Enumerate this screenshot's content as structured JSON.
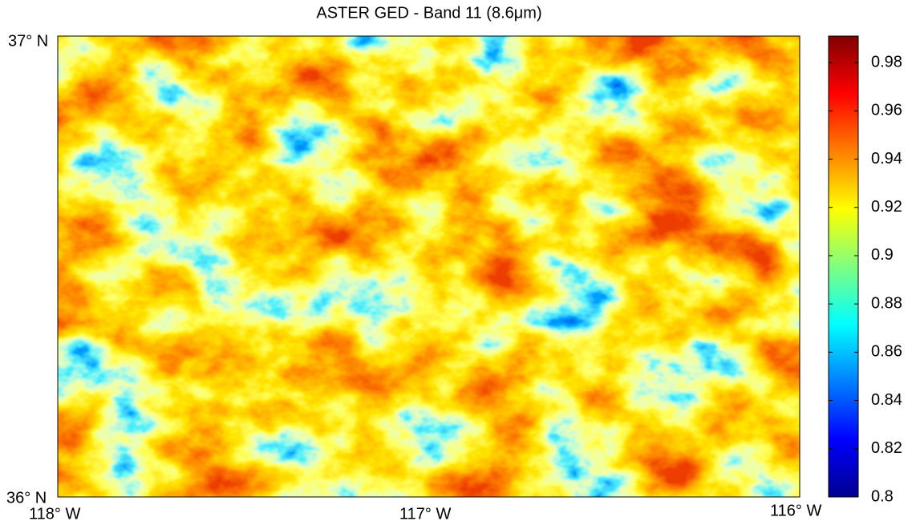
{
  "title": "ASTER GED - Band 11 (8.6μm)",
  "map": {
    "lat_labels": [
      "37° N",
      "36° N"
    ],
    "lon_labels": [
      "118° W",
      "117° W",
      "116° W"
    ]
  },
  "colorbar": {
    "colormap": "jet",
    "lim": [
      0.8,
      0.991
    ],
    "ticks": [
      0.8,
      0.82,
      0.84,
      0.86,
      0.88,
      0.9,
      0.92,
      0.94,
      0.96,
      0.98
    ]
  }
}
